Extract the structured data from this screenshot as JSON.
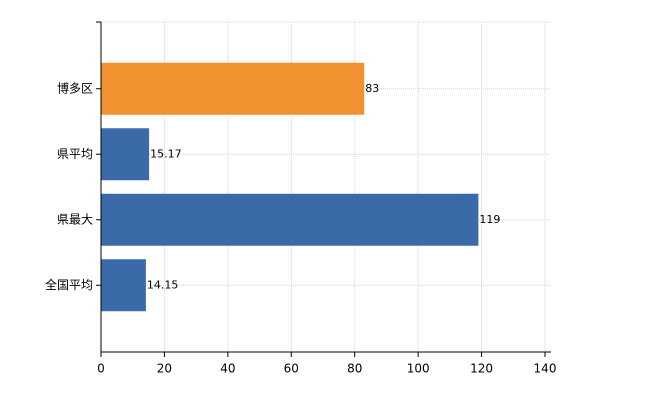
{
  "chart_data": {
    "type": "barh",
    "categories": [
      "博多区",
      "県平均",
      "県最大",
      "全国平均"
    ],
    "values": [
      83,
      15.17,
      119,
      14.15
    ],
    "colors": [
      "#f0922f",
      "#3b6aa8",
      "#3b6aa8",
      "#3b6aa8"
    ],
    "xlim": [
      0,
      140
    ],
    "xticks": [
      0,
      20,
      40,
      60,
      80,
      100,
      120,
      140
    ],
    "grid": true
  }
}
